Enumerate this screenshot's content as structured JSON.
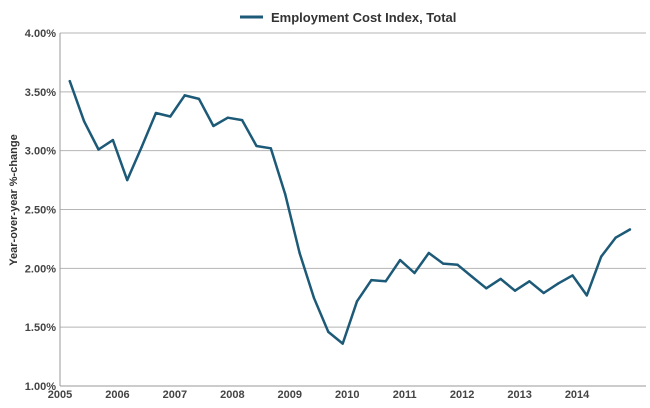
{
  "chart_data": {
    "type": "line",
    "title": "",
    "xlabel": "",
    "ylabel": "Year-over-year %-change",
    "xlim": [
      2005,
      2015.2
    ],
    "ylim": [
      1.0,
      4.0
    ],
    "x_ticks": [
      "2005",
      "2006",
      "2007",
      "2008",
      "2009",
      "2010",
      "2011",
      "2012",
      "2013",
      "2014"
    ],
    "y_ticks": [
      "1.00%",
      "1.50%",
      "2.00%",
      "2.50%",
      "3.00%",
      "3.50%",
      "4.00%"
    ],
    "grid": "horizontal",
    "legend_position": "top-center",
    "color": "#1c5a78",
    "series": [
      {
        "name": "Employment Cost Index, Total",
        "points": [
          {
            "x": 2005.17,
            "y": 3.59
          },
          {
            "x": 2005.42,
            "y": 3.25
          },
          {
            "x": 2005.67,
            "y": 3.01
          },
          {
            "x": 2005.92,
            "y": 3.09
          },
          {
            "x": 2006.17,
            "y": 2.75
          },
          {
            "x": 2006.42,
            "y": 3.03
          },
          {
            "x": 2006.67,
            "y": 3.32
          },
          {
            "x": 2006.92,
            "y": 3.29
          },
          {
            "x": 2007.17,
            "y": 3.47
          },
          {
            "x": 2007.42,
            "y": 3.44
          },
          {
            "x": 2007.67,
            "y": 3.21
          },
          {
            "x": 2007.92,
            "y": 3.28
          },
          {
            "x": 2008.17,
            "y": 3.26
          },
          {
            "x": 2008.42,
            "y": 3.04
          },
          {
            "x": 2008.67,
            "y": 3.02
          },
          {
            "x": 2008.92,
            "y": 2.63
          },
          {
            "x": 2009.17,
            "y": 2.13
          },
          {
            "x": 2009.42,
            "y": 1.75
          },
          {
            "x": 2009.67,
            "y": 1.46
          },
          {
            "x": 2009.92,
            "y": 1.36
          },
          {
            "x": 2010.17,
            "y": 1.72
          },
          {
            "x": 2010.42,
            "y": 1.9
          },
          {
            "x": 2010.67,
            "y": 1.89
          },
          {
            "x": 2010.92,
            "y": 2.07
          },
          {
            "x": 2011.17,
            "y": 1.96
          },
          {
            "x": 2011.42,
            "y": 2.13
          },
          {
            "x": 2011.67,
            "y": 2.04
          },
          {
            "x": 2011.92,
            "y": 2.03
          },
          {
            "x": 2012.17,
            "y": 1.93
          },
          {
            "x": 2012.42,
            "y": 1.83
          },
          {
            "x": 2012.67,
            "y": 1.91
          },
          {
            "x": 2012.92,
            "y": 1.81
          },
          {
            "x": 2013.17,
            "y": 1.89
          },
          {
            "x": 2013.42,
            "y": 1.79
          },
          {
            "x": 2013.67,
            "y": 1.87
          },
          {
            "x": 2013.92,
            "y": 1.94
          },
          {
            "x": 2014.17,
            "y": 1.77
          },
          {
            "x": 2014.42,
            "y": 2.1
          },
          {
            "x": 2014.67,
            "y": 2.26
          },
          {
            "x": 2014.92,
            "y": 2.33
          }
        ]
      }
    ]
  }
}
